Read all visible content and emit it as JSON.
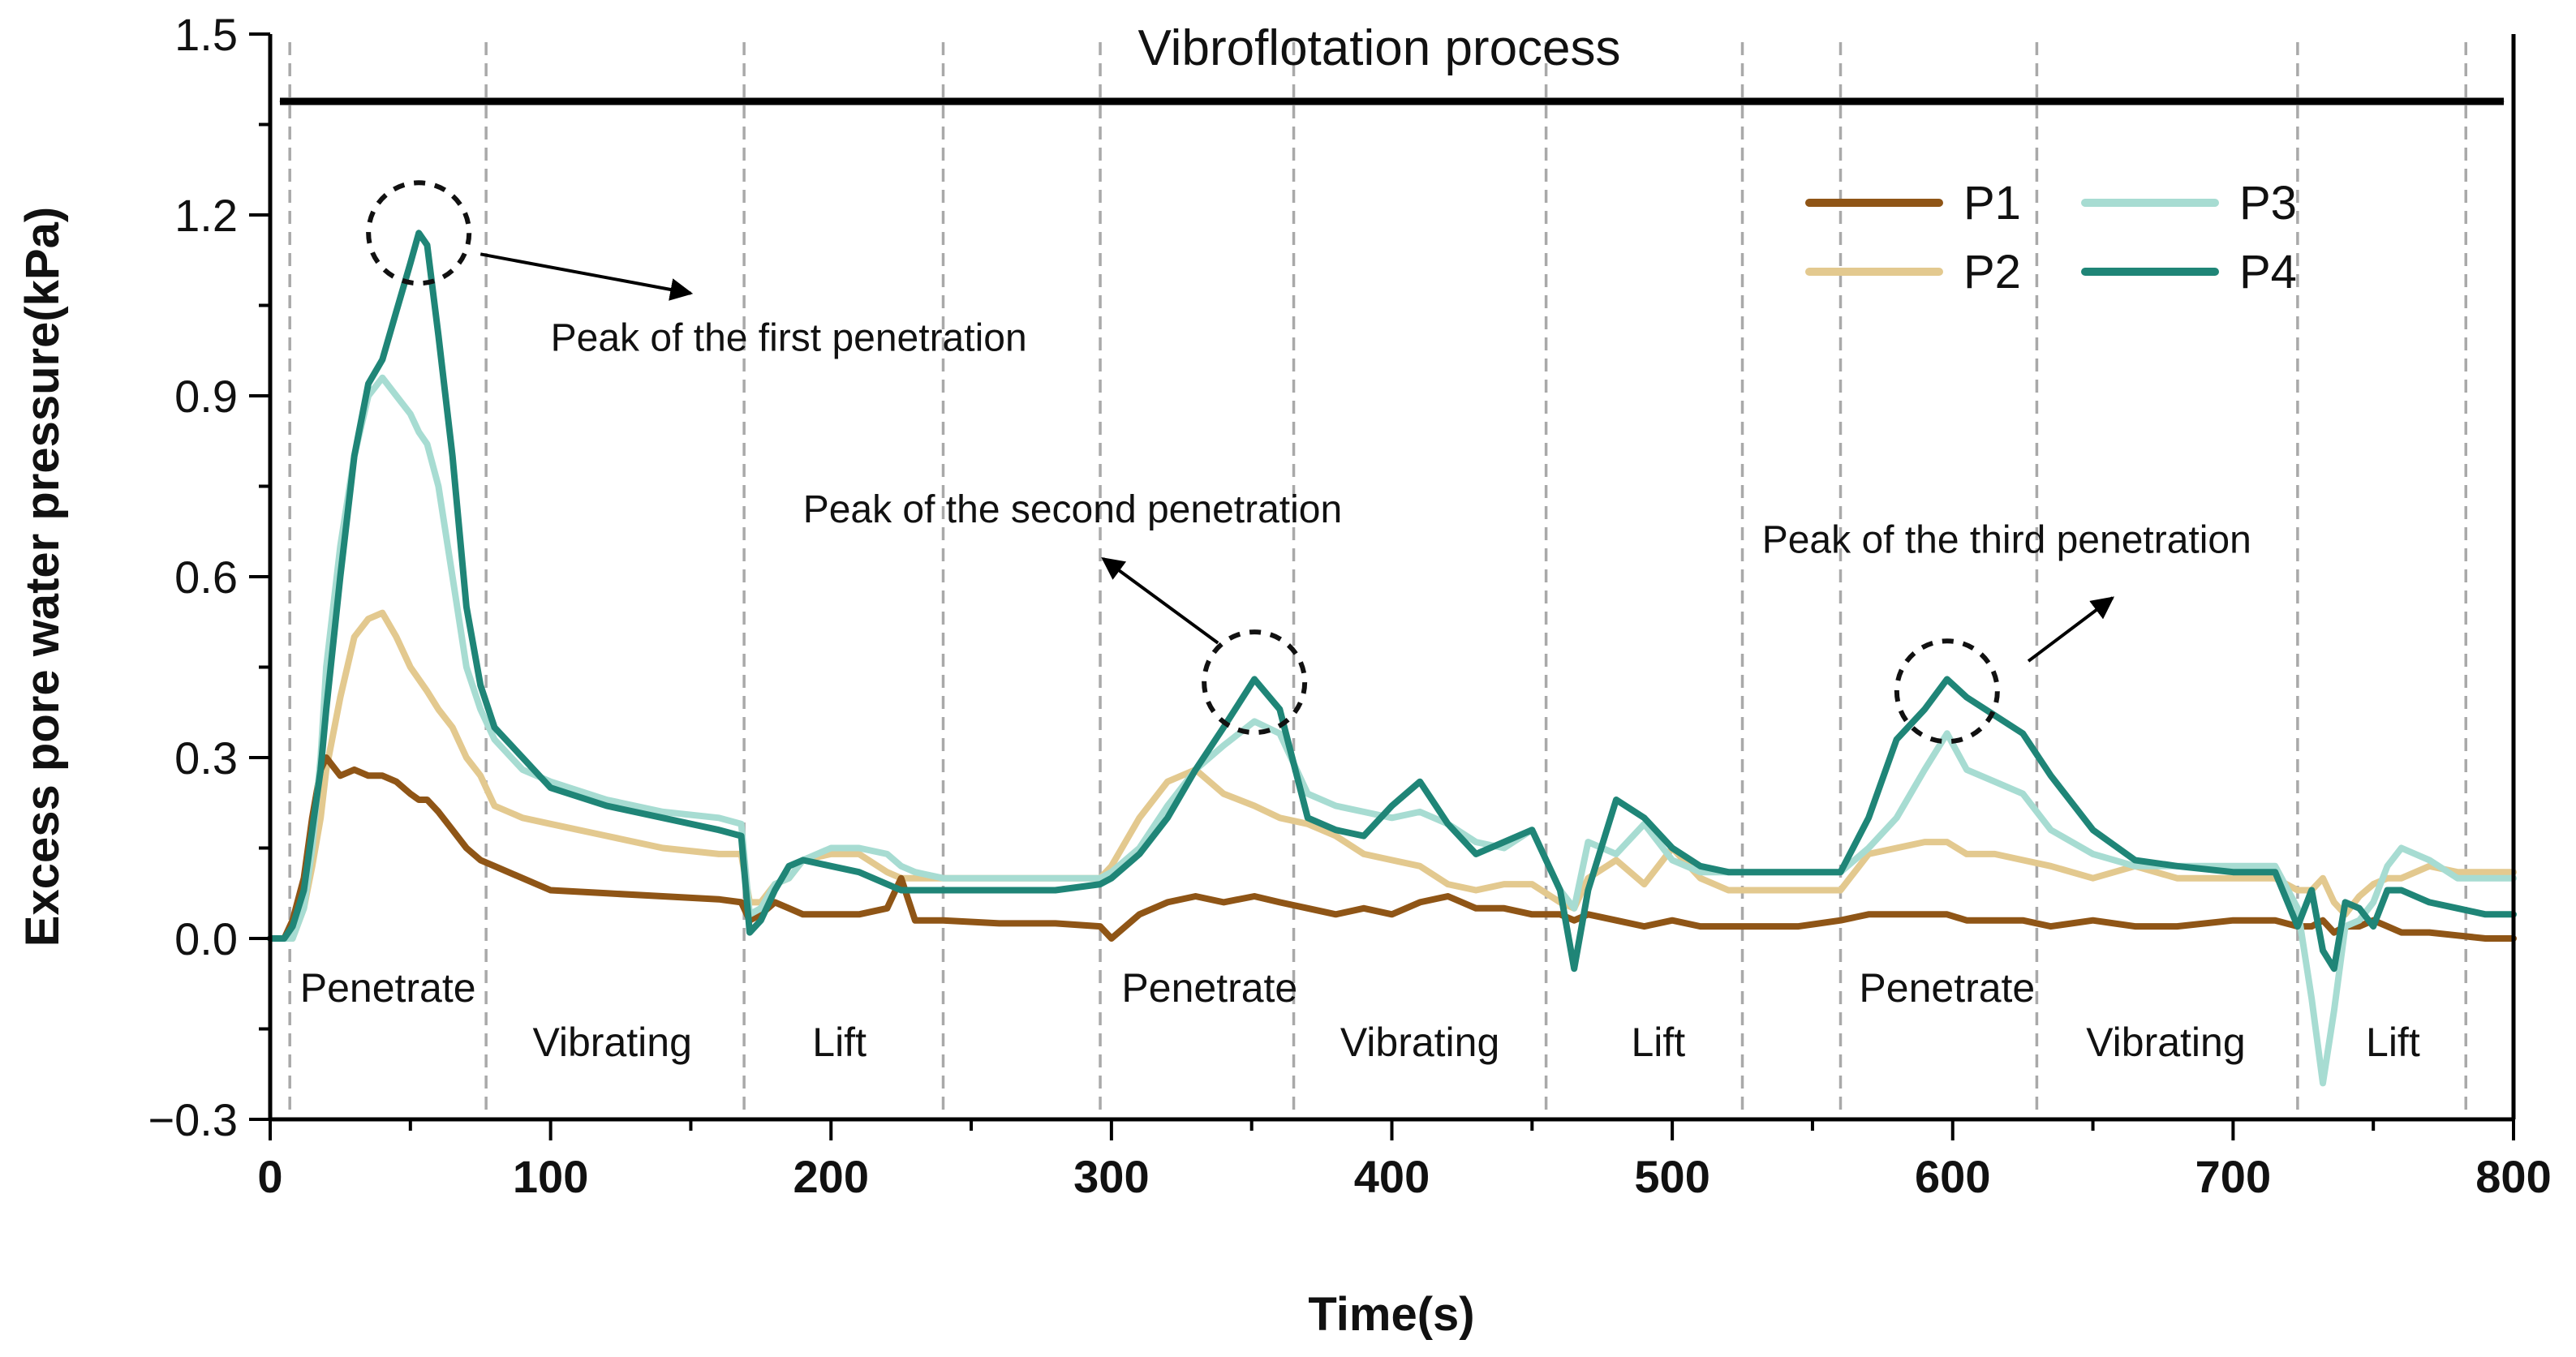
{
  "chart_data": {
    "type": "line",
    "title": "Vibroflotation process",
    "xlabel": "Time(s)",
    "ylabel": "Excess pore water pressure(kPa)",
    "xlim": [
      0,
      800
    ],
    "ylim": [
      -0.3,
      1.5
    ],
    "xticks": [
      "0",
      "100",
      "200",
      "300",
      "400",
      "500",
      "600",
      "700",
      "800"
    ],
    "yticks": [
      "−0.3",
      "0.0",
      "0.3",
      "0.6",
      "0.9",
      "1.2",
      "1.5"
    ],
    "phase_boundaries": [
      7,
      77,
      169,
      240,
      296,
      365,
      455,
      525,
      560,
      630,
      723,
      783
    ],
    "phase_labels": [
      {
        "text": "Penetrate",
        "x": 42,
        "y": -0.105
      },
      {
        "text": "Vibrating",
        "x": 122,
        "y": -0.195
      },
      {
        "text": "Lift",
        "x": 203,
        "y": -0.195
      },
      {
        "text": "Penetrate",
        "x": 335,
        "y": -0.105
      },
      {
        "text": "Vibrating",
        "x": 410,
        "y": -0.195
      },
      {
        "text": "Lift",
        "x": 495,
        "y": -0.195
      },
      {
        "text": "Penetrate",
        "x": 598,
        "y": -0.105
      },
      {
        "text": "Vibrating",
        "x": 676,
        "y": -0.195
      },
      {
        "text": "Lift",
        "x": 757,
        "y": -0.195
      }
    ],
    "annotations": [
      {
        "text": "Peak of the first penetration",
        "x": 100,
        "y": 0.975,
        "peak": [
          53,
          1.17
        ],
        "arrow_from": [
          75,
          1.135
        ],
        "arrow_to": [
          150,
          1.07
        ]
      },
      {
        "text": "Peak of the second penetration",
        "x": 190,
        "y": 0.69,
        "peak": [
          351,
          0.425
        ],
        "arrow_from": [
          338,
          0.49
        ],
        "arrow_to": [
          297,
          0.63
        ]
      },
      {
        "text": "Peak of the third penetration",
        "x": 532,
        "y": 0.64,
        "peak": [
          598,
          0.41
        ],
        "arrow_from": [
          627,
          0.46
        ],
        "arrow_to": [
          657,
          0.565
        ]
      }
    ],
    "legend": {
      "position": "top-right",
      "entries": [
        "P1",
        "P2",
        "P3",
        "P4"
      ]
    },
    "x": [
      0,
      5,
      8,
      12,
      15,
      18,
      20,
      25,
      30,
      35,
      40,
      45,
      50,
      53,
      56,
      60,
      65,
      70,
      75,
      80,
      90,
      100,
      120,
      140,
      160,
      168,
      171,
      175,
      180,
      185,
      190,
      200,
      210,
      220,
      225,
      230,
      240,
      260,
      280,
      296,
      300,
      310,
      320,
      330,
      340,
      351,
      360,
      370,
      380,
      390,
      400,
      410,
      420,
      430,
      440,
      450,
      460,
      465,
      470,
      480,
      490,
      500,
      510,
      520,
      530,
      545,
      560,
      570,
      580,
      590,
      598,
      605,
      615,
      625,
      635,
      650,
      665,
      680,
      700,
      715,
      723,
      728,
      732,
      736,
      740,
      745,
      750,
      755,
      760,
      770,
      780,
      790,
      800
    ],
    "series": [
      {
        "name": "P1",
        "color": "#8f5516",
        "values": [
          0.0,
          0.0,
          0.03,
          0.1,
          0.2,
          0.28,
          0.3,
          0.27,
          0.28,
          0.27,
          0.27,
          0.26,
          0.24,
          0.23,
          0.23,
          0.21,
          0.18,
          0.15,
          0.13,
          0.12,
          0.1,
          0.08,
          0.075,
          0.07,
          0.065,
          0.06,
          0.03,
          0.04,
          0.06,
          0.05,
          0.04,
          0.04,
          0.04,
          0.05,
          0.1,
          0.03,
          0.03,
          0.025,
          0.025,
          0.02,
          0.0,
          0.04,
          0.06,
          0.07,
          0.06,
          0.07,
          0.06,
          0.05,
          0.04,
          0.05,
          0.04,
          0.06,
          0.07,
          0.05,
          0.05,
          0.04,
          0.04,
          0.03,
          0.04,
          0.03,
          0.02,
          0.03,
          0.02,
          0.02,
          0.02,
          0.02,
          0.03,
          0.04,
          0.04,
          0.04,
          0.04,
          0.03,
          0.03,
          0.03,
          0.02,
          0.03,
          0.02,
          0.02,
          0.03,
          0.03,
          0.02,
          0.02,
          0.03,
          0.01,
          0.02,
          0.02,
          0.03,
          0.02,
          0.01,
          0.01,
          0.005,
          0.0,
          0.0
        ]
      },
      {
        "name": "P2",
        "color": "#e3c98f",
        "values": [
          0.0,
          0.0,
          0.0,
          0.05,
          0.12,
          0.2,
          0.28,
          0.4,
          0.5,
          0.53,
          0.54,
          0.5,
          0.45,
          0.43,
          0.41,
          0.38,
          0.35,
          0.3,
          0.27,
          0.22,
          0.2,
          0.19,
          0.17,
          0.15,
          0.14,
          0.14,
          0.06,
          0.06,
          0.09,
          0.1,
          0.13,
          0.14,
          0.14,
          0.11,
          0.1,
          0.1,
          0.1,
          0.1,
          0.1,
          0.1,
          0.12,
          0.2,
          0.26,
          0.28,
          0.24,
          0.22,
          0.2,
          0.19,
          0.17,
          0.14,
          0.13,
          0.12,
          0.09,
          0.08,
          0.09,
          0.09,
          0.06,
          0.05,
          0.1,
          0.13,
          0.09,
          0.15,
          0.1,
          0.08,
          0.08,
          0.08,
          0.08,
          0.14,
          0.15,
          0.16,
          0.16,
          0.14,
          0.14,
          0.13,
          0.12,
          0.1,
          0.12,
          0.1,
          0.1,
          0.1,
          0.08,
          0.08,
          0.1,
          0.06,
          0.04,
          0.07,
          0.09,
          0.1,
          0.1,
          0.12,
          0.11,
          0.11,
          0.11
        ]
      },
      {
        "name": "P3",
        "color": "#a7dcd2",
        "values": [
          0.0,
          0.0,
          0.0,
          0.05,
          0.15,
          0.3,
          0.45,
          0.65,
          0.8,
          0.9,
          0.93,
          0.9,
          0.87,
          0.84,
          0.82,
          0.75,
          0.6,
          0.45,
          0.38,
          0.33,
          0.28,
          0.26,
          0.23,
          0.21,
          0.2,
          0.19,
          0.04,
          0.05,
          0.09,
          0.1,
          0.13,
          0.15,
          0.15,
          0.14,
          0.12,
          0.11,
          0.1,
          0.1,
          0.1,
          0.1,
          0.11,
          0.15,
          0.22,
          0.28,
          0.32,
          0.36,
          0.34,
          0.24,
          0.22,
          0.21,
          0.2,
          0.21,
          0.19,
          0.16,
          0.15,
          0.18,
          0.08,
          0.05,
          0.16,
          0.14,
          0.19,
          0.13,
          0.11,
          0.11,
          0.11,
          0.11,
          0.11,
          0.15,
          0.2,
          0.28,
          0.34,
          0.28,
          0.26,
          0.24,
          0.18,
          0.14,
          0.12,
          0.12,
          0.12,
          0.12,
          0.05,
          -0.1,
          -0.24,
          -0.12,
          0.02,
          0.03,
          0.06,
          0.12,
          0.15,
          0.13,
          0.1,
          0.1,
          0.1
        ]
      },
      {
        "name": "P4",
        "color": "#1f8577",
        "values": [
          0.0,
          0.0,
          0.02,
          0.08,
          0.18,
          0.28,
          0.38,
          0.6,
          0.8,
          0.92,
          0.96,
          1.04,
          1.12,
          1.17,
          1.15,
          1.0,
          0.8,
          0.55,
          0.42,
          0.35,
          0.3,
          0.25,
          0.22,
          0.2,
          0.18,
          0.17,
          0.01,
          0.03,
          0.08,
          0.12,
          0.13,
          0.12,
          0.11,
          0.09,
          0.08,
          0.08,
          0.08,
          0.08,
          0.08,
          0.09,
          0.1,
          0.14,
          0.2,
          0.28,
          0.35,
          0.43,
          0.38,
          0.2,
          0.18,
          0.17,
          0.22,
          0.26,
          0.19,
          0.14,
          0.16,
          0.18,
          0.08,
          -0.05,
          0.08,
          0.23,
          0.2,
          0.15,
          0.12,
          0.11,
          0.11,
          0.11,
          0.11,
          0.2,
          0.33,
          0.38,
          0.43,
          0.4,
          0.37,
          0.34,
          0.27,
          0.18,
          0.13,
          0.12,
          0.11,
          0.11,
          0.02,
          0.08,
          -0.02,
          -0.05,
          0.06,
          0.05,
          0.02,
          0.08,
          0.08,
          0.06,
          0.05,
          0.04,
          0.04
        ]
      }
    ]
  }
}
